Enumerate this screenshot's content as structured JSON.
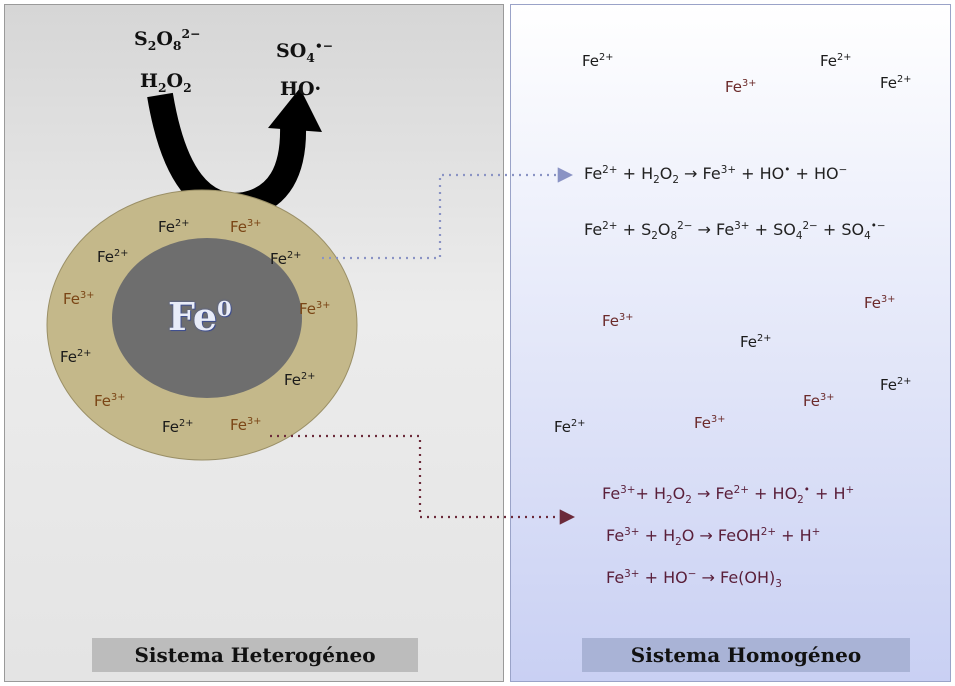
{
  "heterogeneous": {
    "title": "Sistema Heterogéneo",
    "core_label": "Fe",
    "core_sup": "0",
    "reactant_1": {
      "base": "S",
      "sub1": "2",
      "mid": "O",
      "sub2": "8",
      "sup": "2−"
    },
    "reactant_2": {
      "base": "H",
      "sub1": "2",
      "mid": "O",
      "sub2": "2"
    },
    "product_1": {
      "base": "SO",
      "sub": "4",
      "sup": "•−"
    },
    "product_2": "HO·",
    "shell_ions": [
      {
        "base": "Fe",
        "sup": "2+"
      },
      {
        "base": "Fe",
        "sup": "3+"
      },
      {
        "base": "Fe",
        "sup": "2+"
      },
      {
        "base": "Fe",
        "sup": "2+"
      },
      {
        "base": "Fe",
        "sup": "3+"
      },
      {
        "base": "Fe",
        "sup": "3+"
      },
      {
        "base": "Fe",
        "sup": "2+"
      },
      {
        "base": "Fe",
        "sup": "2+"
      },
      {
        "base": "Fe",
        "sup": "3+"
      },
      {
        "base": "Fe",
        "sup": "2+"
      },
      {
        "base": "Fe",
        "sup": "3+"
      }
    ]
  },
  "homogeneous": {
    "title": "Sistema Homogéneo",
    "top_ions": [
      {
        "base": "Fe",
        "sup": "2+"
      },
      {
        "base": "Fe",
        "sup": "3+"
      },
      {
        "base": "Fe",
        "sup": "2+"
      },
      {
        "base": "Fe",
        "sup": "2+"
      }
    ],
    "equations_top": [
      [
        "Fe",
        "2+",
        " + H",
        "2",
        "O",
        "2",
        " → Fe",
        "3+",
        " + HO",
        "•",
        " + HO",
        "−"
      ],
      [
        "Fe",
        "2+",
        " + S",
        "2",
        "O",
        "8",
        "2−",
        " → Fe",
        "3+",
        " + SO",
        "4",
        "2−",
        " + SO",
        "4",
        "•−"
      ]
    ],
    "middle_ions": [
      {
        "base": "Fe",
        "sup": "3+"
      },
      {
        "base": "Fe",
        "sup": "3+"
      },
      {
        "base": "Fe",
        "sup": "2+"
      },
      {
        "base": "Fe",
        "sup": "2+"
      },
      {
        "base": "Fe",
        "sup": "3+"
      },
      {
        "base": "Fe",
        "sup": "2+"
      },
      {
        "base": "Fe",
        "sup": "3+"
      }
    ],
    "equations_bottom": [
      "Fe3+ + H2O2 → Fe2+ + HO2• + H+",
      "Fe3+ + H2O → FeOH2+ + H+",
      "Fe3+ + HO− → Fe(OH)3"
    ]
  },
  "colors": {
    "shell": "#c4b88a",
    "core": "#6e6e6e",
    "arrow_top": "#8a93c4",
    "arrow_bottom": "#6b2a3a"
  }
}
